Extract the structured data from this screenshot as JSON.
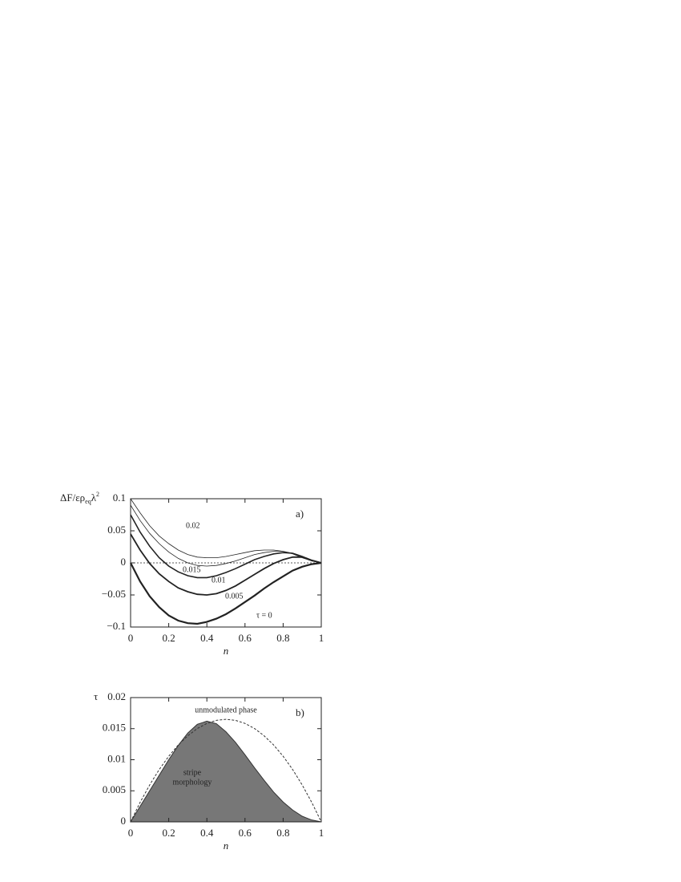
{
  "chart_data": [
    {
      "type": "line",
      "panel": "a)",
      "ylabel": [
        "ΔF/ερ",
        "eq",
        "λ",
        "2"
      ],
      "xlabel": "n",
      "xlim": [
        0,
        1
      ],
      "ylim": [
        -0.1,
        0.1
      ],
      "xticks": [
        0,
        0.2,
        0.4,
        0.6,
        0.8,
        1
      ],
      "yticks": [
        {
          "value": -0.1,
          "label": "−0.1"
        },
        {
          "value": -0.05,
          "label": "−0.05"
        },
        0,
        0.05,
        0.1
      ],
      "reference_line": 0,
      "x": [
        0,
        0.05,
        0.1,
        0.15,
        0.2,
        0.25,
        0.3,
        0.35,
        0.4,
        0.45,
        0.5,
        0.55,
        0.6,
        0.65,
        0.7,
        0.75,
        0.8,
        0.85,
        0.9,
        0.95,
        1
      ],
      "series": [
        {
          "name": "0.02",
          "color": "#222222",
          "values": [
            0.1,
            0.078,
            0.058,
            0.042,
            0.03,
            0.02,
            0.013,
            0.009,
            0.008,
            0.008,
            0.01,
            0.013,
            0.016,
            0.019,
            0.02,
            0.02,
            0.018,
            0.014,
            0.008,
            0.003,
            0
          ]
        },
        {
          "name": "0.015",
          "color": "#222222",
          "values": [
            0.09,
            0.066,
            0.046,
            0.03,
            0.017,
            0.007,
            0,
            -0.004,
            -0.005,
            -0.004,
            -0.001,
            0.003,
            0.008,
            0.013,
            0.016,
            0.018,
            0.018,
            0.015,
            0.009,
            0.003,
            0
          ]
        },
        {
          "name": "0.01",
          "color": "#222222",
          "values": [
            0.075,
            0.048,
            0.026,
            0.008,
            -0.005,
            -0.014,
            -0.02,
            -0.023,
            -0.023,
            -0.02,
            -0.015,
            -0.009,
            -0.002,
            0.005,
            0.01,
            0.014,
            0.016,
            0.015,
            0.01,
            0.004,
            0
          ]
        },
        {
          "name": "0.005",
          "color": "#222222",
          "values": [
            0.045,
            0.02,
            -0.001,
            -0.017,
            -0.029,
            -0.039,
            -0.045,
            -0.049,
            -0.05,
            -0.048,
            -0.043,
            -0.036,
            -0.027,
            -0.018,
            -0.009,
            -0.001,
            0.005,
            0.009,
            0.009,
            0.004,
            0
          ]
        },
        {
          "name": "τ = 0",
          "color": "#222222",
          "values": [
            0,
            -0.029,
            -0.052,
            -0.069,
            -0.082,
            -0.09,
            -0.094,
            -0.095,
            -0.092,
            -0.087,
            -0.08,
            -0.071,
            -0.061,
            -0.051,
            -0.04,
            -0.03,
            -0.021,
            -0.012,
            -0.006,
            -0.002,
            0
          ]
        }
      ]
    },
    {
      "type": "line",
      "panel": "b)",
      "ylabel": [
        "τ"
      ],
      "xlabel": "n",
      "xlim": [
        0,
        1
      ],
      "ylim": [
        0,
        0.02
      ],
      "xticks": [
        0,
        0.2,
        0.4,
        0.6,
        0.8,
        1
      ],
      "yticks": [
        0,
        0.005,
        0.01,
        0.015,
        0.02
      ],
      "annotations": [
        [
          "unmodulated phase"
        ],
        [
          "stripe",
          "morphology"
        ]
      ],
      "x": [
        0,
        0.05,
        0.1,
        0.15,
        0.2,
        0.25,
        0.3,
        0.35,
        0.4,
        0.45,
        0.5,
        0.55,
        0.6,
        0.65,
        0.7,
        0.75,
        0.8,
        0.85,
        0.9,
        0.95,
        1
      ],
      "series": [
        {
          "color": "#333333",
          "fill": "#777777",
          "values": [
            0,
            0.0025,
            0.005,
            0.0075,
            0.01,
            0.0123,
            0.0143,
            0.0157,
            0.0162,
            0.0158,
            0.0145,
            0.0128,
            0.0108,
            0.0087,
            0.0067,
            0.0048,
            0.0032,
            0.0019,
            0.0009,
            0.0003,
            0
          ]
        },
        {
          "color": "#333333",
          "dashed": true,
          "values": [
            0,
            0.00314,
            0.00594,
            0.00842,
            0.01056,
            0.01238,
            0.01386,
            0.01502,
            0.01584,
            0.01634,
            0.0165,
            0.01634,
            0.01584,
            0.01502,
            0.01386,
            0.01238,
            0.01056,
            0.00842,
            0.00594,
            0.00314,
            0
          ]
        }
      ]
    }
  ]
}
